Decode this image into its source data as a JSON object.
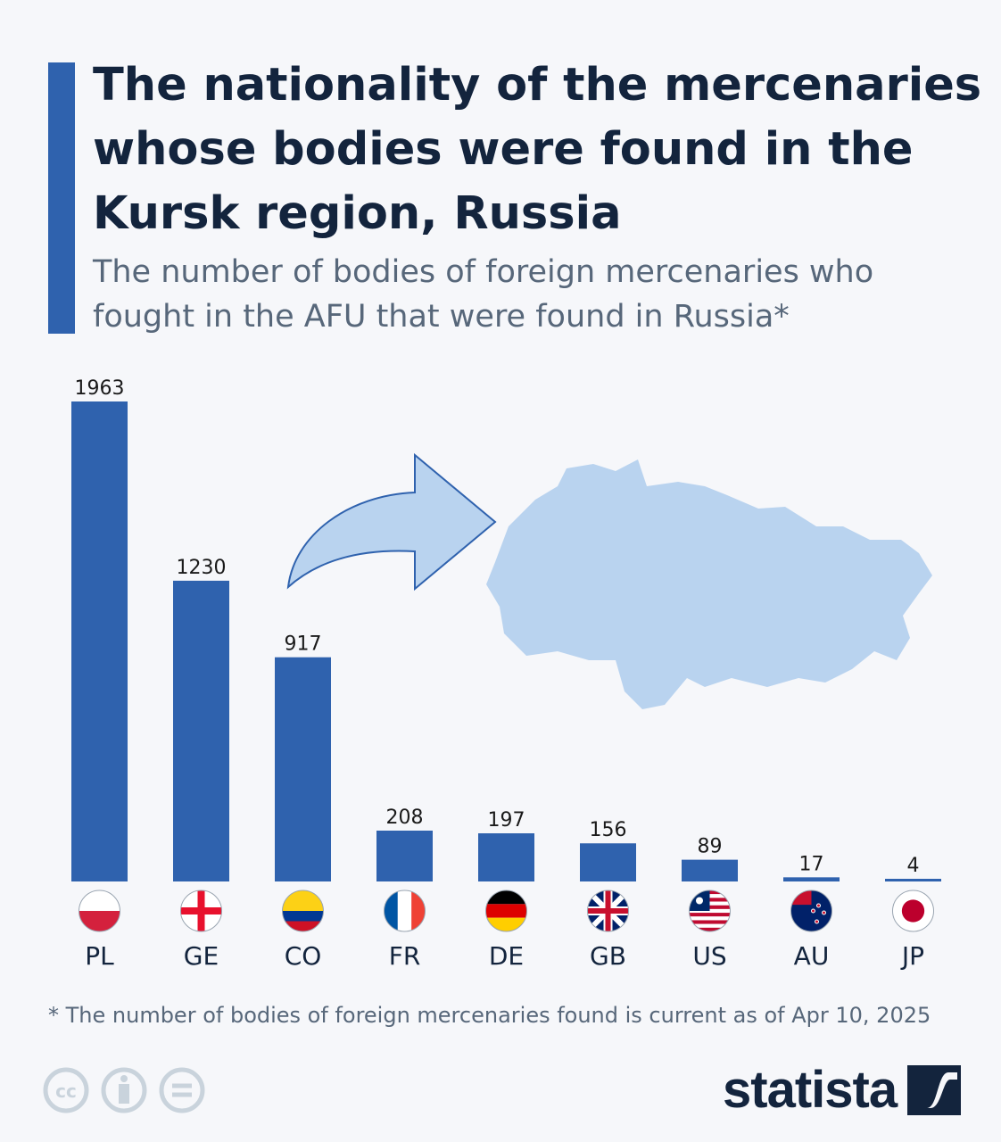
{
  "header": {
    "title": "The nationality of the mercenaries whose bodies were found in the Kursk region, Russia",
    "subtitle": "The number of bodies of foreign mercenaries who fought in the AFU that were found in Russia*"
  },
  "chart_data": {
    "type": "bar",
    "title": "The nationality of the mercenaries whose bodies were found in the Kursk region, Russia",
    "subtitle": "The number of bodies of foreign mercenaries who fought in the AFU that were found in Russia*",
    "categories": [
      "PL",
      "GE",
      "CO",
      "FR",
      "DE",
      "GB",
      "US",
      "AU",
      "JP"
    ],
    "values": [
      1963,
      1230,
      917,
      208,
      197,
      156,
      89,
      17,
      4
    ],
    "ylim": [
      0,
      1963
    ],
    "grid": false,
    "bar_color": "#2f62ae",
    "flags": [
      "poland-flag",
      "georgia-flag",
      "colombia-flag",
      "france-flag",
      "germany-flag",
      "uk-flag",
      "liberia-flag",
      "new-zealand-flag",
      "japan-flag"
    ]
  },
  "footnote": "* The number of bodies of foreign mercenaries found is current as of Apr 10, 2025",
  "brand": {
    "name": "statista",
    "map_color": "#b9d3ef"
  },
  "license_icons": [
    "cc-icon",
    "attribution-icon",
    "no-derivatives-icon"
  ]
}
